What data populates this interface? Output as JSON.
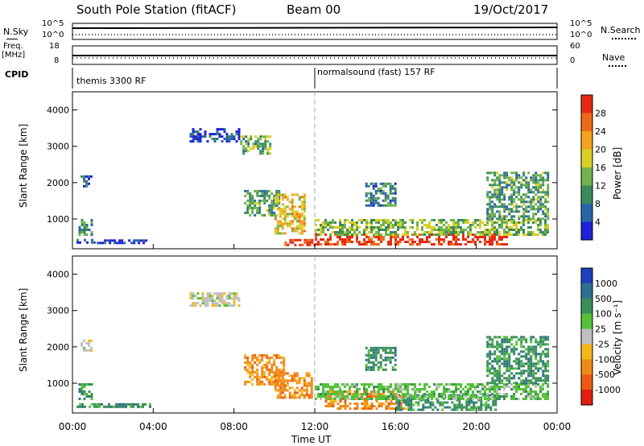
{
  "header": {
    "station": "South Pole Station (fitACF)",
    "beam": "Beam 00",
    "date": "19/Oct/2017"
  },
  "strips": {
    "nsky_label": "N.Sky",
    "nsky_ticks": [
      "10^5",
      "10^0"
    ],
    "nsearch_label": "N.Search",
    "nsearch_ticks": [
      "10^5",
      "10^0"
    ],
    "freq_label": "Freq.",
    "freq_unit": "[MHz]",
    "freq_ticks": [
      "18",
      "8"
    ],
    "nave_label": "Nave",
    "nave_ticks": [
      "60",
      "0"
    ],
    "cpid_label": "CPID",
    "cpid_segments": [
      "themis 3300 RF",
      "normalsound (fast) 157 RF"
    ]
  },
  "chart_data": [
    {
      "type": "heatmap",
      "panel": "power",
      "ylabel": "Slant Range [km]",
      "xlabel": "",
      "xlim": [
        0,
        24
      ],
      "ylim": [
        180,
        4500
      ],
      "yticks": [
        "1000",
        "2000",
        "3000",
        "4000"
      ],
      "colorbar_label": "Power [dB]",
      "colorbar_ticks": [
        "4",
        "8",
        "12",
        "16",
        "20",
        "24",
        "28"
      ],
      "colorbar_colors": [
        "#1e22d6",
        "#2a64a8",
        "#3d8a5c",
        "#6fb34a",
        "#d9cf26",
        "#f5a31c",
        "#ee6a16",
        "#e62a14"
      ],
      "regions": [
        {
          "t0": 0.2,
          "t1": 1.2,
          "r0": 350,
          "r1": 450,
          "level": 0.15
        },
        {
          "t0": 1.2,
          "t1": 3.8,
          "r0": 370,
          "r1": 440,
          "level": 0.1
        },
        {
          "t0": 0.3,
          "t1": 1.0,
          "r0": 600,
          "r1": 1000,
          "level": 0.3
        },
        {
          "t0": 0.4,
          "t1": 0.9,
          "r0": 1900,
          "r1": 2200,
          "level": 0.2
        },
        {
          "t0": 5.8,
          "t1": 8.2,
          "r0": 3150,
          "r1": 3500,
          "level": 0.12
        },
        {
          "t0": 8.3,
          "t1": 9.8,
          "r0": 2800,
          "r1": 3300,
          "level": 0.4
        },
        {
          "t0": 8.5,
          "t1": 10.2,
          "r0": 1100,
          "r1": 1800,
          "level": 0.35
        },
        {
          "t0": 10.0,
          "t1": 11.5,
          "r0": 600,
          "r1": 1700,
          "level": 0.6
        },
        {
          "t0": 10.5,
          "t1": 12.0,
          "r0": 300,
          "r1": 450,
          "level": 0.9
        },
        {
          "t0": 12.0,
          "t1": 21.5,
          "r0": 300,
          "r1": 600,
          "level": 0.95
        },
        {
          "t0": 12.0,
          "t1": 23.5,
          "r0": 600,
          "r1": 1000,
          "level": 0.45
        },
        {
          "t0": 20.5,
          "t1": 23.5,
          "r0": 1000,
          "r1": 2300,
          "level": 0.35
        },
        {
          "t0": 14.5,
          "t1": 16.0,
          "r0": 1400,
          "r1": 2000,
          "level": 0.25
        }
      ]
    },
    {
      "type": "heatmap",
      "panel": "velocity",
      "ylabel": "Slant Range [km]",
      "xlabel": "Time UT",
      "xlim": [
        0,
        24
      ],
      "ylim": [
        180,
        4500
      ],
      "yticks": [
        "1000",
        "2000",
        "3000",
        "4000"
      ],
      "xticks": [
        "00:00",
        "04:00",
        "08:00",
        "12:00",
        "16:00",
        "20:00",
        "00:00"
      ],
      "colorbar_label": "Velocity [m s⁻¹]",
      "colorbar_ticks": [
        "1000",
        "500",
        "100",
        "25",
        "-25",
        "-100",
        "-500",
        "-1000"
      ],
      "colorbar_colors": [
        "#1f3fbf",
        "#2f6f8f",
        "#3a8f5a",
        "#55c23a",
        "#c0c0c0",
        "#f5b81c",
        "#f08a18",
        "#ee5a14",
        "#e01e10"
      ],
      "regions": [
        {
          "t0": 0.2,
          "t1": 3.8,
          "r0": 370,
          "r1": 450,
          "cls": 2
        },
        {
          "t0": 0.3,
          "t1": 1.0,
          "r0": 600,
          "r1": 1000,
          "cls": 2
        },
        {
          "t0": 0.4,
          "t1": 0.9,
          "r0": 1900,
          "r1": 2200,
          "cls": 4
        },
        {
          "t0": 5.8,
          "t1": 8.2,
          "r0": 3150,
          "r1": 3500,
          "cls": 4
        },
        {
          "t0": 8.5,
          "t1": 10.5,
          "r0": 1000,
          "r1": 1800,
          "cls": 6
        },
        {
          "t0": 10.0,
          "t1": 11.8,
          "r0": 600,
          "r1": 1300,
          "cls": 6
        },
        {
          "t0": 12.5,
          "t1": 16.5,
          "r0": 300,
          "r1": 800,
          "cls": 6
        },
        {
          "t0": 16.0,
          "t1": 21.0,
          "r0": 300,
          "r1": 700,
          "cls": 2
        },
        {
          "t0": 12.0,
          "t1": 23.5,
          "r0": 600,
          "r1": 1000,
          "cls": 3
        },
        {
          "t0": 20.5,
          "t1": 23.5,
          "r0": 1000,
          "r1": 2300,
          "cls": 2
        },
        {
          "t0": 14.5,
          "t1": 16.0,
          "r0": 1400,
          "r1": 2000,
          "cls": 2
        }
      ]
    }
  ]
}
